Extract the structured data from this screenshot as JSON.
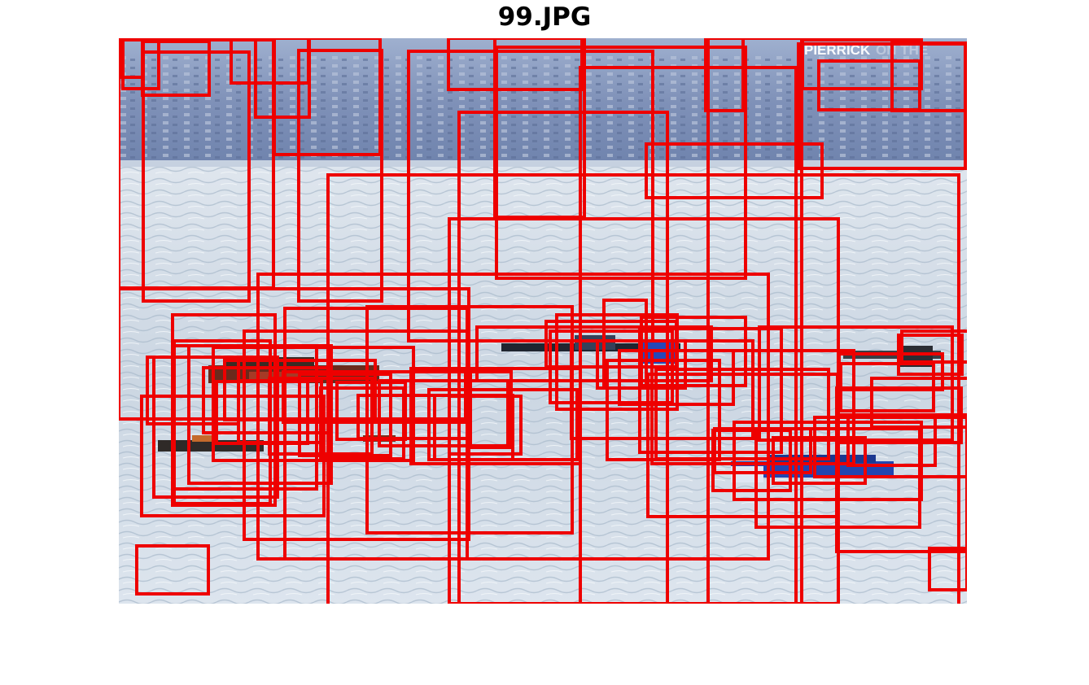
{
  "figure": {
    "title": "99.JPG"
  },
  "photo": {
    "scene": "boats-on-lake",
    "watermark_main": "PIERRICK",
    "watermark_faded": "ON THE"
  },
  "colors": {
    "box_stroke": "#ee0000",
    "sky_hills": "#7e8fb6",
    "water": "#cfdae6",
    "boat_red": "#8b2d1e",
    "boat_blue": "#2244aa"
  },
  "box_count": 84
}
